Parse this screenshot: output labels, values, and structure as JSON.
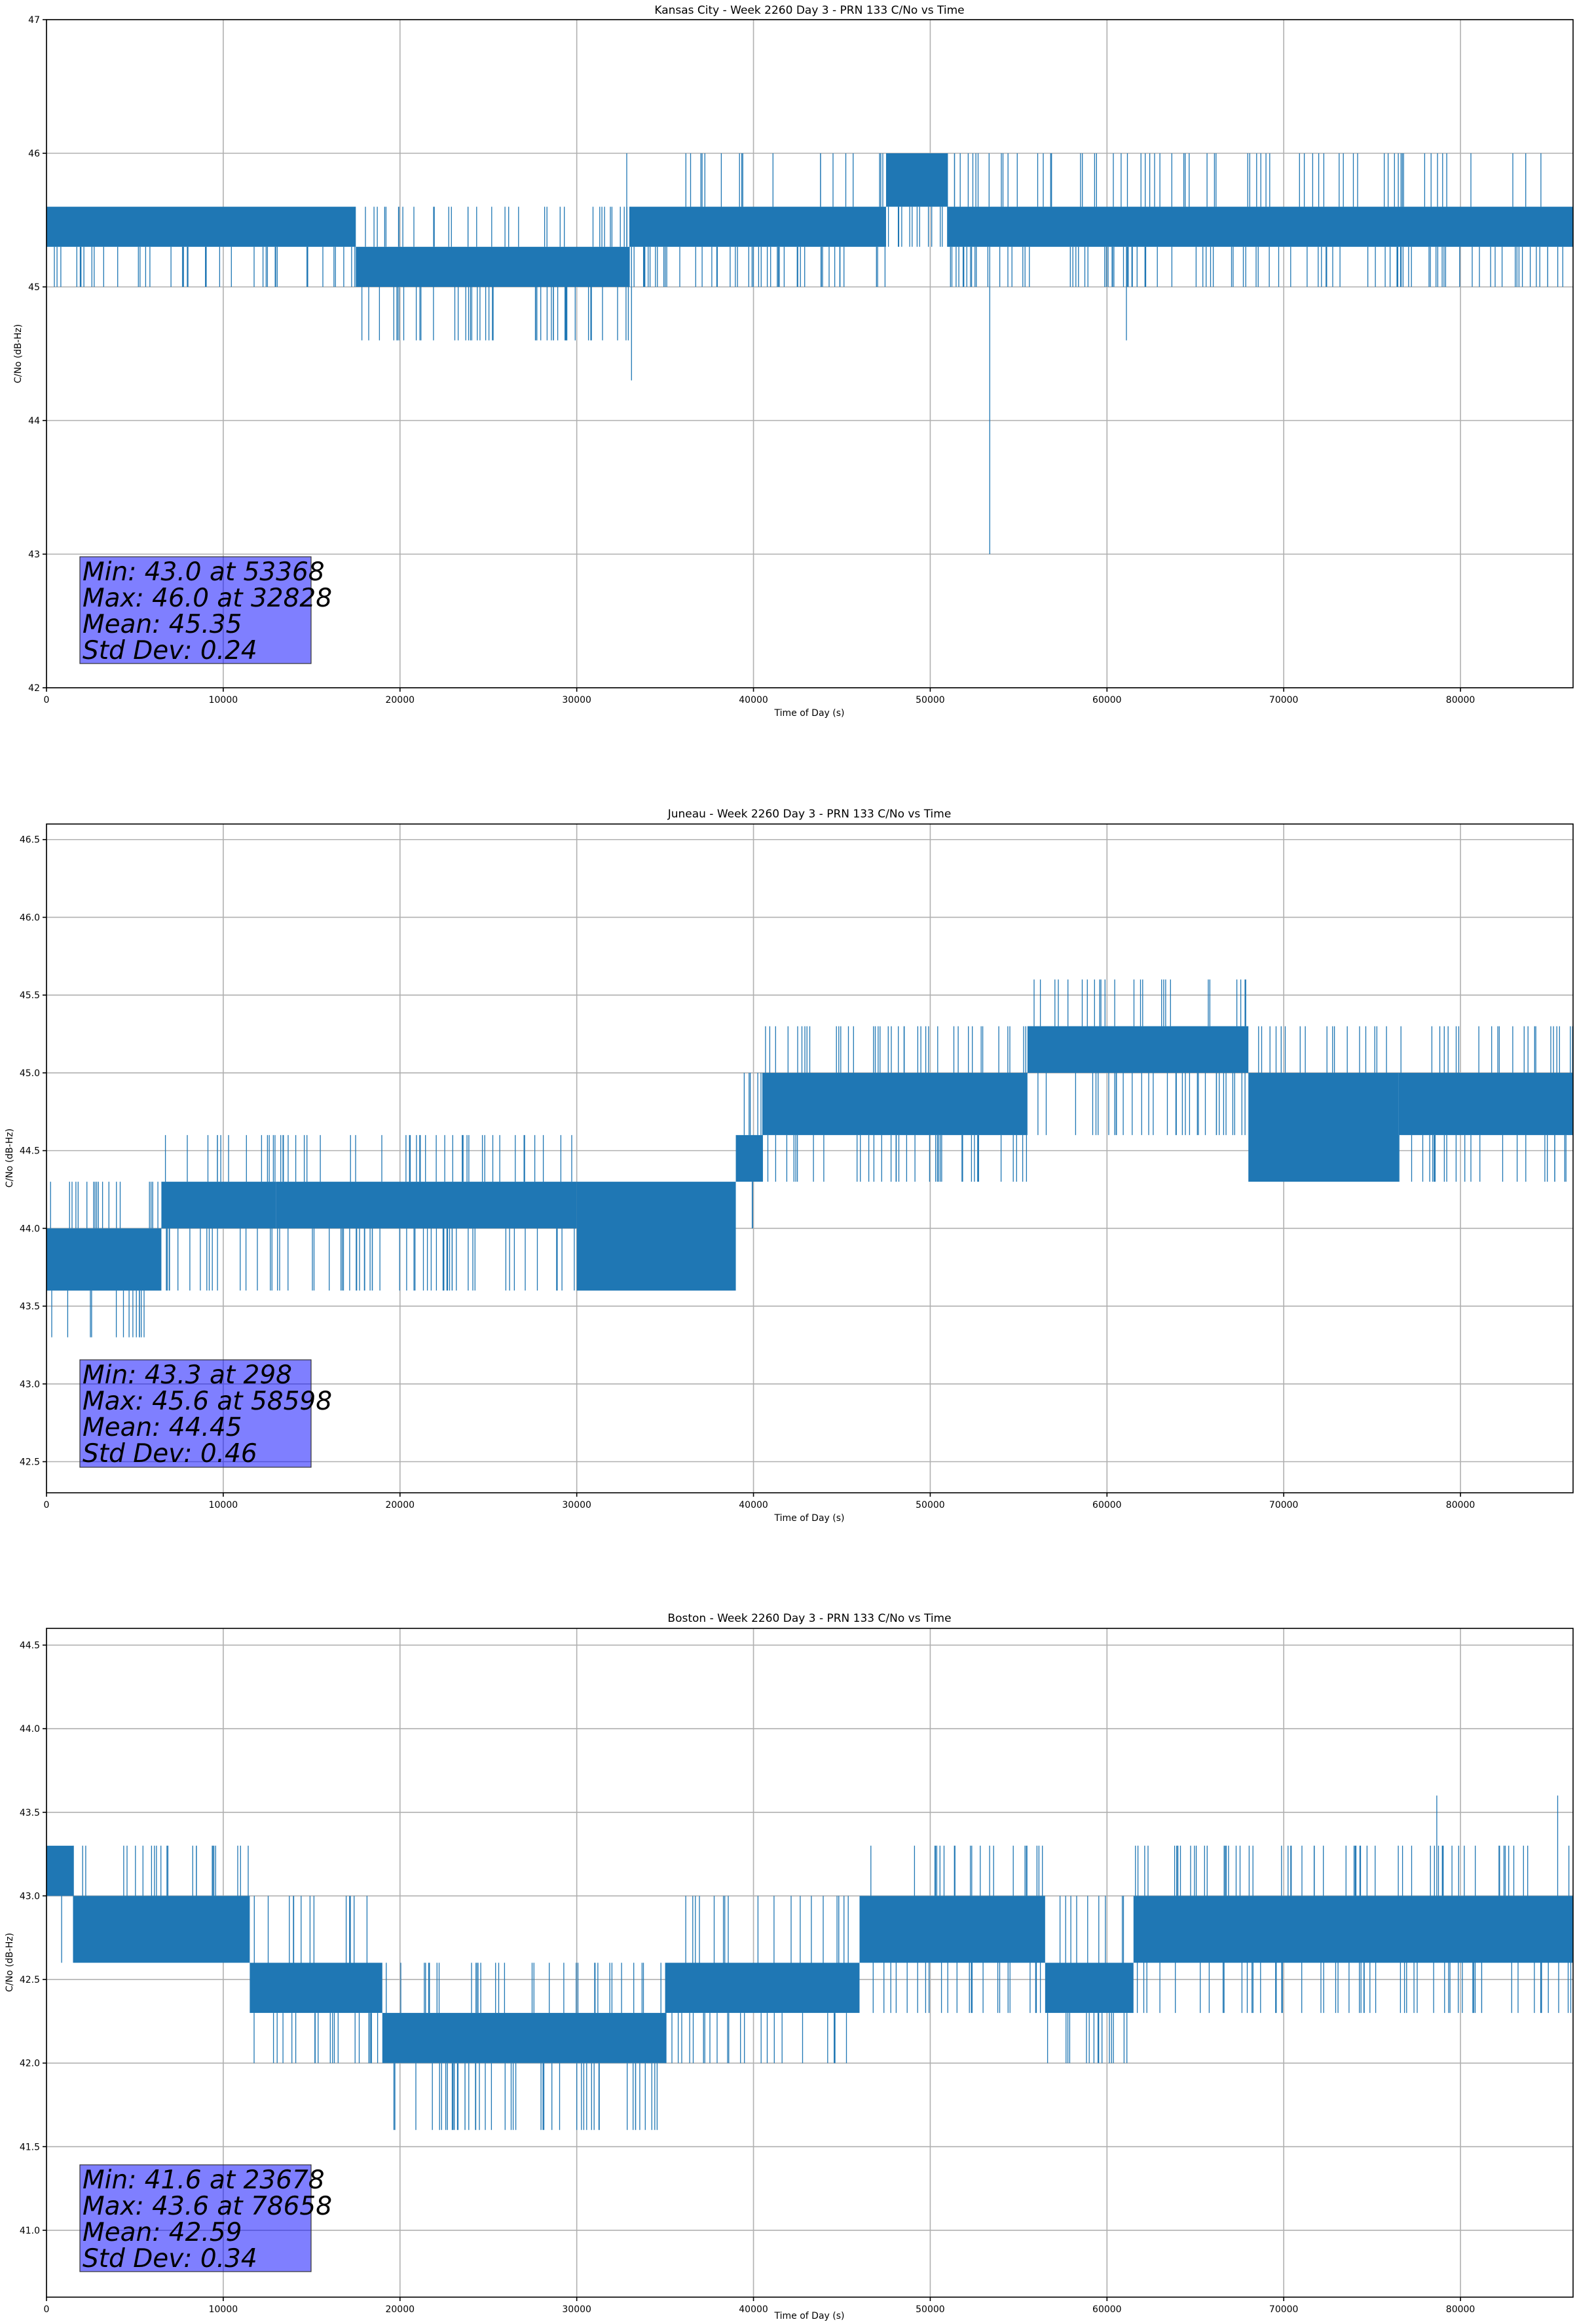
{
  "colors": {
    "line": "#1f77b4",
    "grid": "#b0b0b0",
    "stat_box": "#0000ff"
  },
  "chart_data": [
    {
      "type": "line",
      "title": "Kansas City - Week 2260 Day 3 - PRN 133 C/No vs Time",
      "xlabel": "Time of Day (s)",
      "ylabel": "C/No (dB-Hz)",
      "xlim": [
        0,
        86370
      ],
      "ylim": [
        42,
        47
      ],
      "xticks": [
        0,
        10000,
        20000,
        30000,
        40000,
        50000,
        60000,
        70000,
        80000
      ],
      "yticks": [
        42,
        43,
        44,
        45,
        46,
        47
      ],
      "ytick_labels": [
        "42",
        "43",
        "44",
        "45",
        "46",
        "47"
      ],
      "grid": true,
      "stats": [
        "Min: 43.0 at 53368",
        "Max: 46.0 at 32828",
        "Mean: 45.35",
        "Std Dev: 0.24"
      ],
      "series": [
        {
          "values_by_segment": [
            {
              "x_start": 0,
              "x_end": 17500,
              "band": [
                45.3,
                45.6
              ],
              "dips": [
                45.0
              ],
              "spikes": []
            },
            {
              "x_start": 17500,
              "x_end": 33000,
              "band": [
                45.0,
                45.3
              ],
              "dips": [
                44.6
              ],
              "spikes": [
                45.6
              ]
            },
            {
              "x_start": 33000,
              "x_end": 47500,
              "band": [
                45.3,
                45.6
              ],
              "dips": [
                45.0
              ],
              "spikes": [
                46.0
              ]
            },
            {
              "x_start": 47500,
              "x_end": 51000,
              "band": [
                45.6,
                46.0
              ],
              "dips": [
                45.3
              ],
              "spikes": []
            },
            {
              "x_start": 51000,
              "x_end": 86370,
              "band": [
                45.3,
                45.6
              ],
              "dips": [
                45.0
              ],
              "spikes": [
                46.0
              ]
            }
          ],
          "outliers": [
            [
              32828,
              46.0
            ],
            [
              33100,
              44.3
            ],
            [
              53368,
              43.0
            ],
            [
              61100,
              44.6
            ]
          ]
        }
      ]
    },
    {
      "type": "line",
      "title": "Juneau - Week 2260 Day 3 - PRN 133 C/No vs Time",
      "xlabel": "Time of Day (s)",
      "ylabel": "C/No (dB-Hz)",
      "xlim": [
        0,
        86370
      ],
      "ylim": [
        42.3,
        46.6
      ],
      "xticks": [
        0,
        10000,
        20000,
        30000,
        40000,
        50000,
        60000,
        70000,
        80000
      ],
      "yticks": [
        42.5,
        43.0,
        43.5,
        44.0,
        44.5,
        45.0,
        45.5,
        46.0,
        46.5
      ],
      "ytick_labels": [
        "42.5",
        "43.0",
        "43.5",
        "44.0",
        "44.5",
        "45.0",
        "45.5",
        "46.0",
        "46.5"
      ],
      "grid": true,
      "stats": [
        "Min: 43.3 at 298",
        "Max: 45.6 at 58598",
        "Mean: 44.45",
        "Std Dev: 0.46"
      ],
      "series": [
        {
          "values_by_segment": [
            {
              "x_start": 0,
              "x_end": 6500,
              "band": [
                43.6,
                44.0
              ],
              "dips": [
                43.3
              ],
              "spikes": [
                44.3
              ]
            },
            {
              "x_start": 6500,
              "x_end": 13000,
              "band": [
                44.0,
                44.3
              ],
              "dips": [
                43.6
              ],
              "spikes": [
                44.6
              ]
            },
            {
              "x_start": 13000,
              "x_end": 30000,
              "band": [
                44.0,
                44.3
              ],
              "dips": [
                43.6
              ],
              "spikes": [
                44.6
              ]
            },
            {
              "x_start": 30000,
              "x_end": 39000,
              "band": [
                43.6,
                44.3
              ],
              "dips": [
                43.6
              ],
              "spikes": [
                44.3
              ]
            },
            {
              "x_start": 39000,
              "x_end": 40500,
              "band": [
                44.3,
                44.6
              ],
              "dips": [
                44.0
              ],
              "spikes": [
                45.0
              ]
            },
            {
              "x_start": 40500,
              "x_end": 55500,
              "band": [
                44.6,
                45.0
              ],
              "dips": [
                44.3
              ],
              "spikes": [
                45.3
              ]
            },
            {
              "x_start": 55500,
              "x_end": 68000,
              "band": [
                45.0,
                45.3
              ],
              "dips": [
                44.6
              ],
              "spikes": [
                45.6
              ]
            },
            {
              "x_start": 68000,
              "x_end": 76500,
              "band": [
                44.3,
                45.0
              ],
              "dips": [
                44.3
              ],
              "spikes": [
                45.3
              ]
            },
            {
              "x_start": 76500,
              "x_end": 86370,
              "band": [
                44.6,
                45.0
              ],
              "dips": [
                44.3
              ],
              "spikes": [
                45.3
              ]
            }
          ],
          "outliers": [
            [
              298,
              43.3
            ],
            [
              58598,
              45.6
            ]
          ]
        }
      ]
    },
    {
      "type": "line",
      "title": "Boston - Week 2260 Day 3 - PRN 133 C/No vs Time",
      "xlabel": "Time of Day (s)",
      "ylabel": "C/No (dB-Hz)",
      "xlim": [
        0,
        86370
      ],
      "ylim": [
        40.6,
        44.6
      ],
      "xticks": [
        0,
        10000,
        20000,
        30000,
        40000,
        50000,
        60000,
        70000,
        80000
      ],
      "yticks": [
        41.0,
        41.5,
        42.0,
        42.5,
        43.0,
        43.5,
        44.0,
        44.5
      ],
      "ytick_labels": [
        "41.0",
        "41.5",
        "42.0",
        "42.5",
        "43.0",
        "43.5",
        "44.0",
        "44.5"
      ],
      "grid": true,
      "stats": [
        "Min: 41.6 at 23678",
        "Max: 43.6 at 78658",
        "Mean: 42.59",
        "Std Dev: 0.34"
      ],
      "series": [
        {
          "values_by_segment": [
            {
              "x_start": 0,
              "x_end": 1500,
              "band": [
                43.0,
                43.3
              ],
              "dips": [
                42.6
              ],
              "spikes": []
            },
            {
              "x_start": 1500,
              "x_end": 11500,
              "band": [
                42.6,
                43.0
              ],
              "dips": [
                42.6
              ],
              "spikes": [
                43.3
              ]
            },
            {
              "x_start": 11500,
              "x_end": 19000,
              "band": [
                42.3,
                42.6
              ],
              "dips": [
                42.0
              ],
              "spikes": [
                43.0
              ]
            },
            {
              "x_start": 19000,
              "x_end": 35000,
              "band": [
                42.0,
                42.3
              ],
              "dips": [
                41.6
              ],
              "spikes": [
                42.6
              ]
            },
            {
              "x_start": 35000,
              "x_end": 46000,
              "band": [
                42.3,
                42.6
              ],
              "dips": [
                42.0
              ],
              "spikes": [
                43.0
              ]
            },
            {
              "x_start": 46000,
              "x_end": 56500,
              "band": [
                42.6,
                43.0
              ],
              "dips": [
                42.3
              ],
              "spikes": [
                43.3
              ]
            },
            {
              "x_start": 56500,
              "x_end": 61500,
              "band": [
                42.3,
                42.6
              ],
              "dips": [
                42.0
              ],
              "spikes": [
                43.0
              ]
            },
            {
              "x_start": 61500,
              "x_end": 86370,
              "band": [
                42.6,
                43.0
              ],
              "dips": [
                42.3
              ],
              "spikes": [
                43.3
              ]
            }
          ],
          "outliers": [
            [
              23678,
              41.6
            ],
            [
              30000,
              41.6
            ],
            [
              78658,
              43.6
            ],
            [
              85500,
              43.6
            ]
          ]
        }
      ]
    }
  ]
}
